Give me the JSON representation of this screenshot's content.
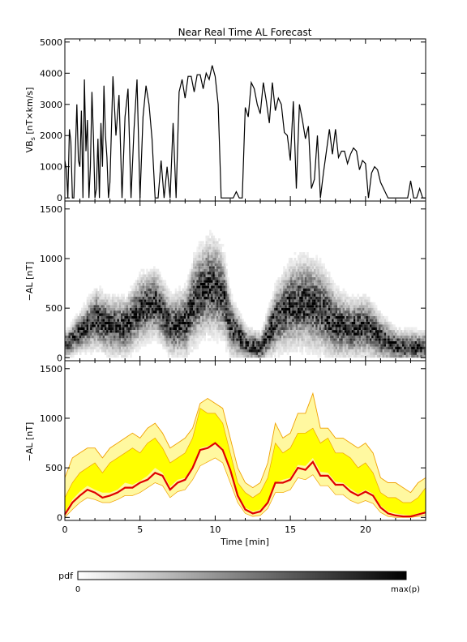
{
  "title": "Near Real Time AL Forecast",
  "colors": {
    "axis": "#000000",
    "vbs_line": "#000000",
    "al_median": "#e00000",
    "band_inner": "#ffff00",
    "band_outer_line": "#f0a000"
  },
  "chart_data": [
    {
      "type": "line",
      "panel": "top",
      "ylabel_main": "VB",
      "ylabel_sub": "s",
      "ylabel_units": " [nT×km/s]",
      "ylim": [
        -100,
        5100
      ],
      "yticks": [
        "0",
        "1000",
        "2000",
        "3000",
        "4000",
        "5000"
      ],
      "xlim": [
        0,
        24
      ],
      "series": [
        {
          "x": [
            0,
            0.1,
            0.2,
            0.3,
            0.4,
            0.5,
            0.6,
            0.7,
            0.8,
            0.9,
            1.0,
            1.1,
            1.2,
            1.3,
            1.4,
            1.5,
            1.6,
            1.7,
            1.8,
            1.9,
            2.0,
            2.1,
            2.2,
            2.3,
            2.4,
            2.5,
            2.6,
            2.7,
            2.8,
            2.9,
            3.0,
            3.2,
            3.4,
            3.6,
            3.8,
            4.0,
            4.2,
            4.4,
            4.6,
            4.8,
            5.0,
            5.2,
            5.4,
            5.6,
            5.8,
            6.0,
            6.2,
            6.4,
            6.6,
            6.8,
            7.0,
            7.2,
            7.4,
            7.6,
            7.8,
            8.0,
            8.2,
            8.4,
            8.6,
            8.8,
            9.0,
            9.2,
            9.4,
            9.6,
            9.8,
            10.0,
            10.2,
            10.4,
            10.6,
            10.8,
            11.0,
            11.2,
            11.4,
            11.6,
            11.8,
            12.0,
            12.2,
            12.4,
            12.6,
            12.8,
            13.0,
            13.2,
            13.4,
            13.6,
            13.8,
            14.0,
            14.2,
            14.4,
            14.6,
            14.8,
            15.0,
            15.2,
            15.4,
            15.6,
            15.8,
            16.0,
            16.2,
            16.4,
            16.6,
            16.8,
            17.0,
            17.2,
            17.4,
            17.6,
            17.8,
            18.0,
            18.2,
            18.4,
            18.6,
            18.8,
            19.0,
            19.2,
            19.4,
            19.6,
            19.8,
            20.0,
            20.2,
            20.4,
            20.6,
            20.8,
            21.0,
            21.5,
            22.0,
            22.5,
            22.8,
            23.0,
            23.2,
            23.4,
            23.6,
            23.8,
            24.0
          ],
          "y": [
            1200,
            900,
            0,
            2200,
            1800,
            0,
            0,
            1500,
            3000,
            1200,
            1000,
            2800,
            0,
            3800,
            1500,
            2500,
            0,
            1000,
            3400,
            2000,
            0,
            300,
            1900,
            0,
            2400,
            1000,
            3600,
            2000,
            1300,
            0,
            500,
            3900,
            2000,
            3300,
            0,
            2600,
            3500,
            0,
            2200,
            3800,
            0,
            2600,
            3600,
            3000,
            1900,
            0,
            0,
            1200,
            0,
            1000,
            0,
            2400,
            0,
            3400,
            3800,
            3200,
            3900,
            3900,
            3400,
            3950,
            3950,
            3500,
            4000,
            3800,
            4250,
            3900,
            3000,
            0,
            0,
            0,
            0,
            0,
            200,
            0,
            0,
            2900,
            2600,
            3700,
            3500,
            3000,
            2700,
            3700,
            3100,
            2400,
            3700,
            2800,
            3200,
            3000,
            2100,
            2000,
            1200,
            3100,
            300,
            3000,
            2500,
            1900,
            2300,
            300,
            600,
            2000,
            0,
            800,
            1500,
            2200,
            1400,
            2200,
            1300,
            1500,
            1500,
            1100,
            1400,
            1600,
            1500,
            900,
            1200,
            1100,
            0,
            800,
            1000,
            900,
            500,
            0,
            0,
            0,
            0,
            550,
            0,
            0,
            300,
            0,
            0
          ]
        }
      ]
    },
    {
      "type": "heatmap",
      "panel": "middle",
      "ylabel": "−AL [nT]",
      "ylim": [
        -30,
        1580
      ],
      "yticks": [
        "0",
        "500",
        "1000",
        "1500"
      ],
      "xlim": [
        0,
        24
      ],
      "density_center_x": [
        0,
        1,
        2,
        3,
        4,
        5,
        6,
        7,
        8,
        8.5,
        9,
        9.5,
        10,
        10.5,
        11,
        12,
        13,
        14,
        15,
        16,
        17,
        18,
        19,
        20,
        21,
        22,
        23,
        24
      ],
      "density_center_y": [
        120,
        250,
        380,
        300,
        300,
        480,
        540,
        300,
        350,
        550,
        650,
        700,
        700,
        600,
        300,
        120,
        80,
        380,
        520,
        540,
        480,
        320,
        280,
        300,
        180,
        100,
        90,
        80
      ],
      "density_spread": [
        120,
        180,
        260,
        260,
        260,
        300,
        300,
        260,
        300,
        380,
        400,
        420,
        420,
        380,
        260,
        150,
        140,
        300,
        380,
        400,
        380,
        300,
        260,
        260,
        200,
        150,
        150,
        150
      ],
      "legend": {
        "label": "pdf",
        "min_label": "0",
        "max_label": "max(p)"
      }
    },
    {
      "type": "area",
      "panel": "bottom",
      "ylabel": "−AL [nT]",
      "ylim": [
        -30,
        1580
      ],
      "yticks": [
        "0",
        "500",
        "1000",
        "1500"
      ],
      "xlim": [
        0,
        24
      ],
      "xticks": [
        "0",
        "5",
        "10",
        "15",
        "20"
      ],
      "xlabel": "Time [min]",
      "x": [
        0,
        0.5,
        1,
        1.5,
        2,
        2.5,
        3,
        3.5,
        4,
        4.5,
        5,
        5.5,
        6,
        6.5,
        7,
        7.5,
        8,
        8.5,
        9,
        9.5,
        10,
        10.5,
        11,
        11.5,
        12,
        12.5,
        13,
        13.5,
        14,
        14.5,
        15,
        15.5,
        16,
        16.5,
        17,
        17.5,
        18,
        18.5,
        19,
        19.5,
        20,
        20.5,
        21,
        21.5,
        22,
        22.5,
        23,
        23.5,
        24
      ],
      "series": [
        {
          "name": "outer_upper",
          "values": [
            400,
            600,
            650,
            700,
            700,
            600,
            700,
            750,
            800,
            850,
            800,
            900,
            950,
            850,
            700,
            750,
            800,
            900,
            1150,
            1200,
            1150,
            1100,
            800,
            500,
            350,
            300,
            350,
            550,
            950,
            800,
            850,
            1050,
            1050,
            1250,
            900,
            900,
            800,
            800,
            750,
            700,
            750,
            650,
            400,
            350,
            350,
            300,
            250,
            350,
            400
          ]
        },
        {
          "name": "band_upper",
          "values": [
            200,
            350,
            450,
            500,
            550,
            450,
            550,
            600,
            650,
            700,
            650,
            750,
            800,
            700,
            550,
            600,
            650,
            800,
            1100,
            1050,
            1050,
            950,
            650,
            350,
            250,
            200,
            250,
            400,
            750,
            650,
            700,
            850,
            850,
            900,
            750,
            800,
            650,
            650,
            600,
            500,
            550,
            450,
            250,
            200,
            200,
            150,
            150,
            200,
            300
          ]
        },
        {
          "name": "band_lower",
          "values": [
            50,
            180,
            260,
            320,
            280,
            250,
            250,
            280,
            350,
            330,
            370,
            420,
            500,
            450,
            310,
            380,
            400,
            520,
            700,
            720,
            750,
            700,
            500,
            240,
            100,
            60,
            80,
            160,
            350,
            380,
            400,
            530,
            520,
            600,
            460,
            450,
            360,
            350,
            290,
            240,
            280,
            240,
            120,
            60,
            40,
            30,
            20,
            40,
            60
          ]
        },
        {
          "name": "median",
          "values": [
            30,
            150,
            220,
            280,
            250,
            200,
            220,
            250,
            300,
            300,
            350,
            380,
            450,
            420,
            280,
            350,
            380,
            500,
            680,
            700,
            750,
            680,
            480,
            220,
            80,
            40,
            60,
            150,
            350,
            350,
            380,
            500,
            480,
            560,
            420,
            420,
            330,
            330,
            260,
            220,
            260,
            220,
            100,
            40,
            20,
            10,
            10,
            30,
            50
          ]
        },
        {
          "name": "outer_lower",
          "values": [
            0,
            80,
            150,
            200,
            180,
            150,
            150,
            180,
            220,
            220,
            250,
            300,
            350,
            320,
            200,
            260,
            280,
            380,
            520,
            560,
            600,
            550,
            350,
            150,
            40,
            10,
            20,
            90,
            250,
            250,
            280,
            400,
            380,
            430,
            320,
            320,
            230,
            230,
            170,
            140,
            170,
            140,
            50,
            10,
            0,
            0,
            0,
            10,
            20
          ]
        }
      ]
    }
  ]
}
